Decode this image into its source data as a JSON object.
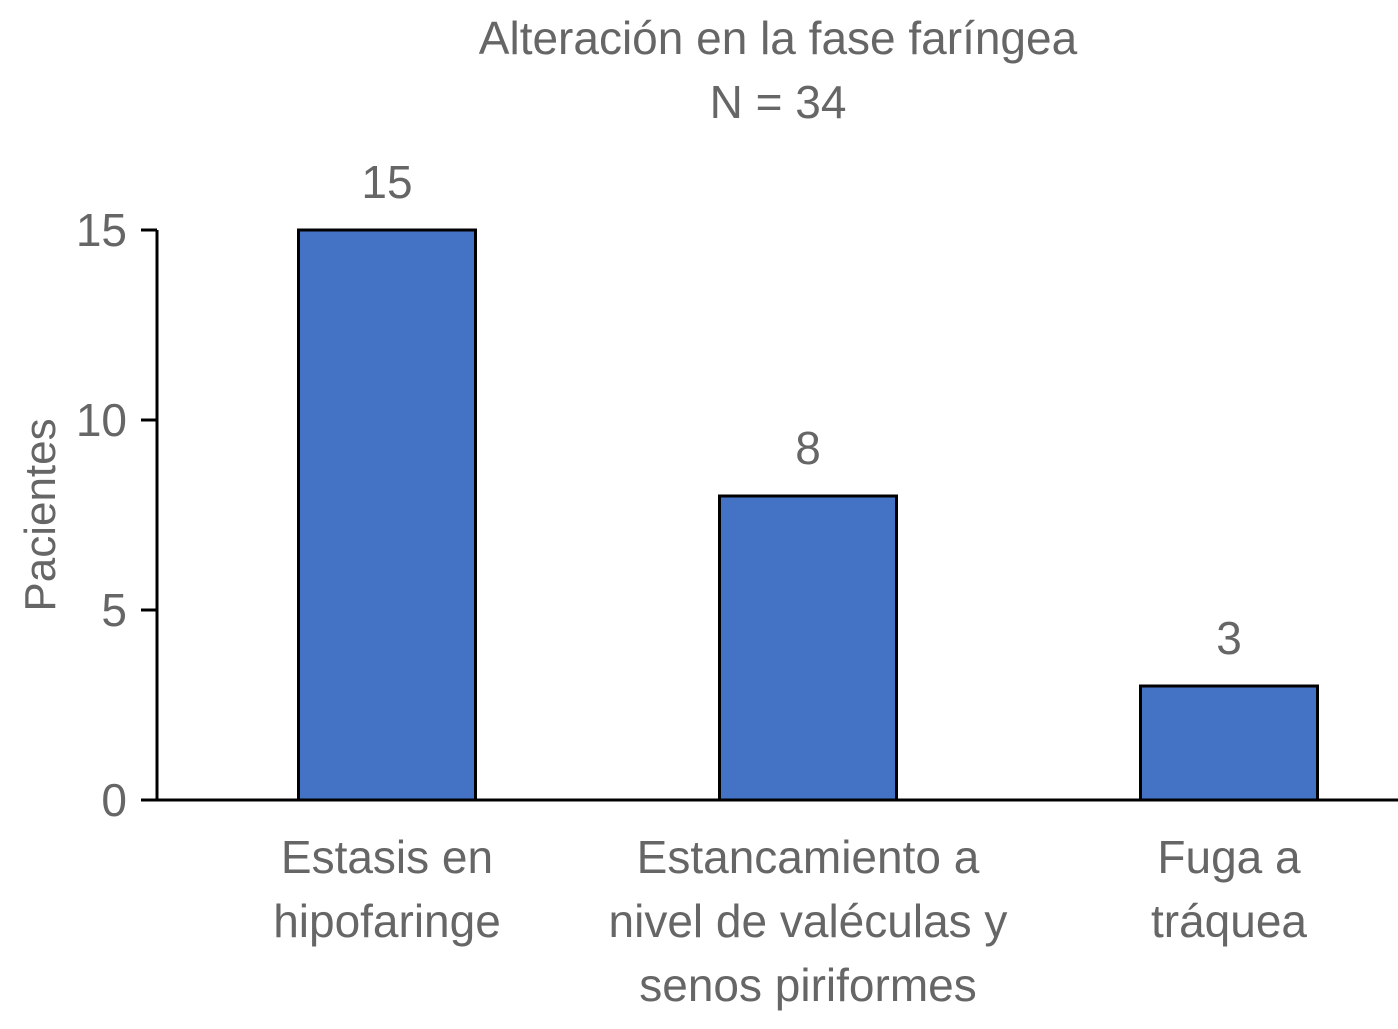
{
  "chart_data": {
    "type": "bar",
    "title": "Alteración en la fase faríngea",
    "subtitle": "N = 34",
    "xlabel": "",
    "ylabel": "Pacientes",
    "categories": [
      [
        "Estasis en",
        "hipofaringe"
      ],
      [
        "Estancamiento a",
        "nivel de  valéculas y",
        "senos piriformes"
      ],
      [
        "Fuga a",
        "tráquea"
      ]
    ],
    "values": [
      15,
      8,
      3
    ],
    "value_labels": [
      "15",
      "8",
      "3"
    ],
    "yticks": [
      0,
      5,
      10,
      15
    ],
    "ylim": [
      0,
      15
    ],
    "grid": false,
    "legend": "none",
    "bar_color": "#4472C4",
    "bar_edge_color": "#000000",
    "text_color": "#666666",
    "axis_color": "#000000"
  }
}
